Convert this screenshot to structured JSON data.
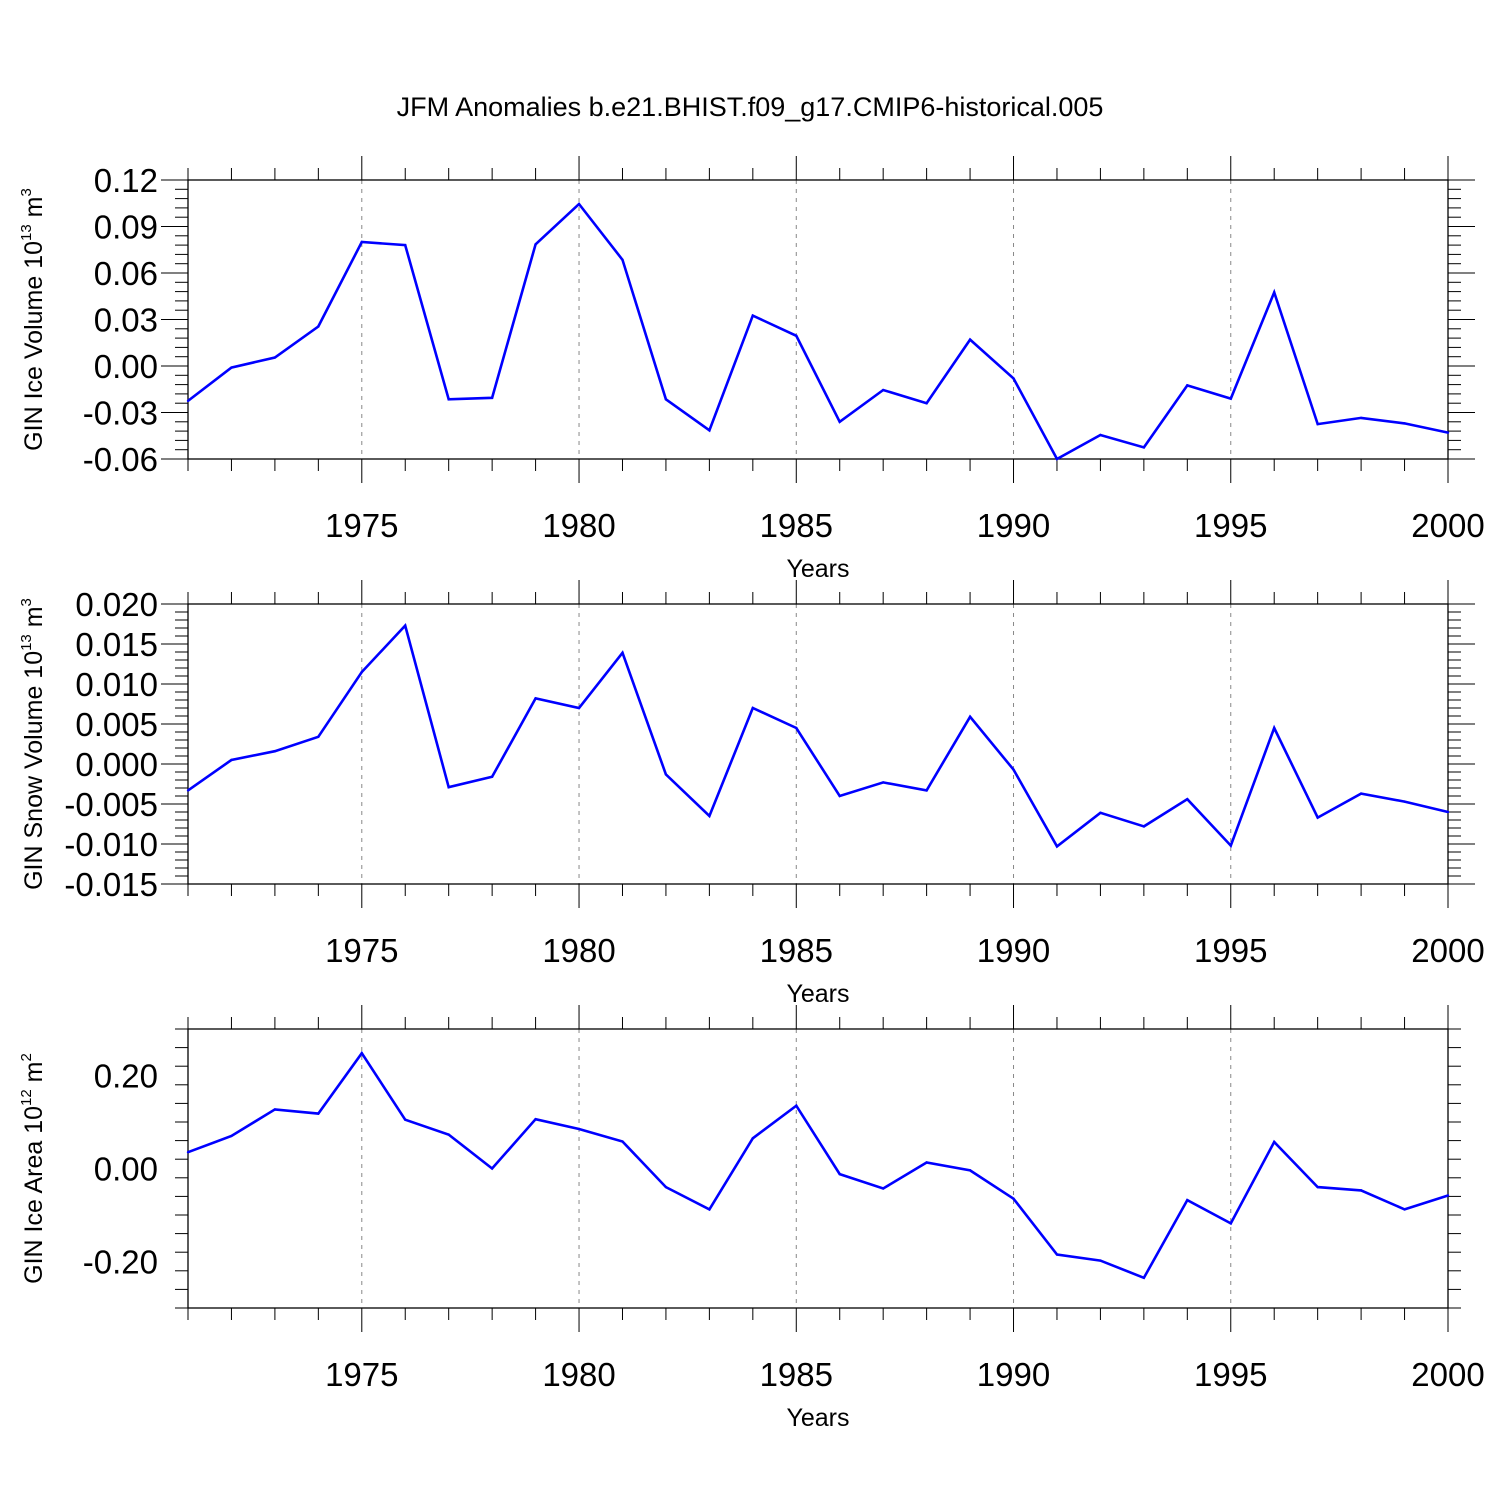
{
  "title": "JFM Anomalies b.e21.BHIST.f09_g17.CMIP6-historical.005",
  "line_color": "#0000ff",
  "chart_data": [
    {
      "type": "line",
      "title": "JFM Anomalies b.e21.BHIST.f09_g17.CMIP6-historical.005",
      "xlabel": "Years",
      "ylabel": "GIN Ice Volume 10",
      "ylabel_exp": "13",
      "ylabel_unit": " m",
      "ylabel_unit_exp": "3",
      "xlim": [
        1971,
        2000
      ],
      "ylim": [
        -0.06,
        0.12
      ],
      "x_ticks": [
        1975,
        1980,
        1985,
        1990,
        1995,
        2000
      ],
      "x_tick_labels": [
        "1975",
        "1980",
        "1985",
        "1990",
        "1995",
        "2000"
      ],
      "y_ticks": [
        -0.06,
        -0.03,
        0.0,
        0.03,
        0.06,
        0.09,
        0.12
      ],
      "y_tick_labels": [
        "-0.06",
        "-0.03",
        "0.00",
        "0.03",
        "0.06",
        "0.09",
        "0.12"
      ],
      "grid": "x-dashed",
      "x": [
        1971,
        1972,
        1973,
        1974,
        1975,
        1976,
        1977,
        1978,
        1979,
        1980,
        1981,
        1982,
        1983,
        1984,
        1985,
        1986,
        1987,
        1988,
        1989,
        1990,
        1991,
        1992,
        1993,
        1994,
        1995,
        1996,
        1997,
        1998,
        1999,
        2000
      ],
      "series": [
        {
          "name": "GIN Ice Volume",
          "values": [
            -0.0225,
            -0.001,
            0.0055,
            0.0255,
            0.08,
            0.078,
            -0.0215,
            -0.0205,
            0.0785,
            0.1045,
            0.0685,
            -0.0215,
            -0.0415,
            0.0325,
            0.0195,
            -0.036,
            -0.0155,
            -0.024,
            0.017,
            -0.008,
            -0.06,
            -0.0445,
            -0.0525,
            -0.0125,
            -0.021,
            0.0475,
            -0.0375,
            -0.0335,
            -0.037,
            -0.043
          ]
        }
      ]
    },
    {
      "type": "line",
      "xlabel": "Years",
      "ylabel": "GIN Snow Volume 10",
      "ylabel_exp": "13",
      "ylabel_unit": " m",
      "ylabel_unit_exp": "3",
      "xlim": [
        1971,
        2000
      ],
      "ylim": [
        -0.015,
        0.02
      ],
      "x_ticks": [
        1975,
        1980,
        1985,
        1990,
        1995,
        2000
      ],
      "x_tick_labels": [
        "1975",
        "1980",
        "1985",
        "1990",
        "1995",
        "2000"
      ],
      "y_ticks": [
        -0.015,
        -0.01,
        -0.005,
        0.0,
        0.005,
        0.01,
        0.015,
        0.02
      ],
      "y_tick_labels": [
        "-0.015",
        "-0.010",
        "-0.005",
        "0.000",
        "0.005",
        "0.010",
        "0.015",
        "0.020"
      ],
      "grid": "x-dashed",
      "x": [
        1971,
        1972,
        1973,
        1974,
        1975,
        1976,
        1977,
        1978,
        1979,
        1980,
        1981,
        1982,
        1983,
        1984,
        1985,
        1986,
        1987,
        1988,
        1989,
        1990,
        1991,
        1992,
        1993,
        1994,
        1995,
        1996,
        1997,
        1998,
        1999,
        2000
      ],
      "series": [
        {
          "name": "GIN Snow Volume",
          "values": [
            -0.0033,
            0.0005,
            0.0016,
            0.0034,
            0.0115,
            0.0173,
            -0.0029,
            -0.0016,
            0.0082,
            0.007,
            0.0139,
            -0.0013,
            -0.0065,
            0.007,
            0.0045,
            -0.004,
            -0.0023,
            -0.0033,
            0.0059,
            -0.0007,
            -0.0103,
            -0.0061,
            -0.0078,
            -0.0044,
            -0.0102,
            0.0045,
            -0.0067,
            -0.0037,
            -0.0047,
            -0.006
          ]
        }
      ]
    },
    {
      "type": "line",
      "xlabel": "Years",
      "ylabel": "GIN Ice Area 10",
      "ylabel_exp": "12",
      "ylabel_unit": " m",
      "ylabel_unit_exp": "2",
      "xlim": [
        1971,
        2000
      ],
      "ylim": [
        -0.3,
        0.3
      ],
      "x_ticks": [
        1975,
        1980,
        1985,
        1990,
        1995,
        2000
      ],
      "x_tick_labels": [
        "1975",
        "1980",
        "1985",
        "1990",
        "1995",
        "2000"
      ],
      "y_ticks": [
        -0.2,
        0.0,
        0.2
      ],
      "y_tick_labels": [
        "-0.20",
        "0.00",
        "0.20"
      ],
      "grid": "x-dashed",
      "x": [
        1971,
        1972,
        1973,
        1974,
        1975,
        1976,
        1977,
        1978,
        1979,
        1980,
        1981,
        1982,
        1983,
        1984,
        1985,
        1986,
        1987,
        1988,
        1989,
        1990,
        1991,
        1992,
        1993,
        1994,
        1995,
        1996,
        1997,
        1998,
        1999,
        2000
      ],
      "series": [
        {
          "name": "GIN Ice Area",
          "values": [
            0.035,
            0.07,
            0.127,
            0.118,
            0.248,
            0.105,
            0.073,
            0.0,
            0.106,
            0.085,
            0.058,
            -0.04,
            -0.088,
            0.065,
            0.135,
            -0.012,
            -0.043,
            0.013,
            -0.004,
            -0.065,
            -0.185,
            -0.198,
            -0.235,
            -0.068,
            -0.118,
            0.057,
            -0.04,
            -0.047,
            -0.088,
            -0.058
          ]
        }
      ]
    }
  ]
}
